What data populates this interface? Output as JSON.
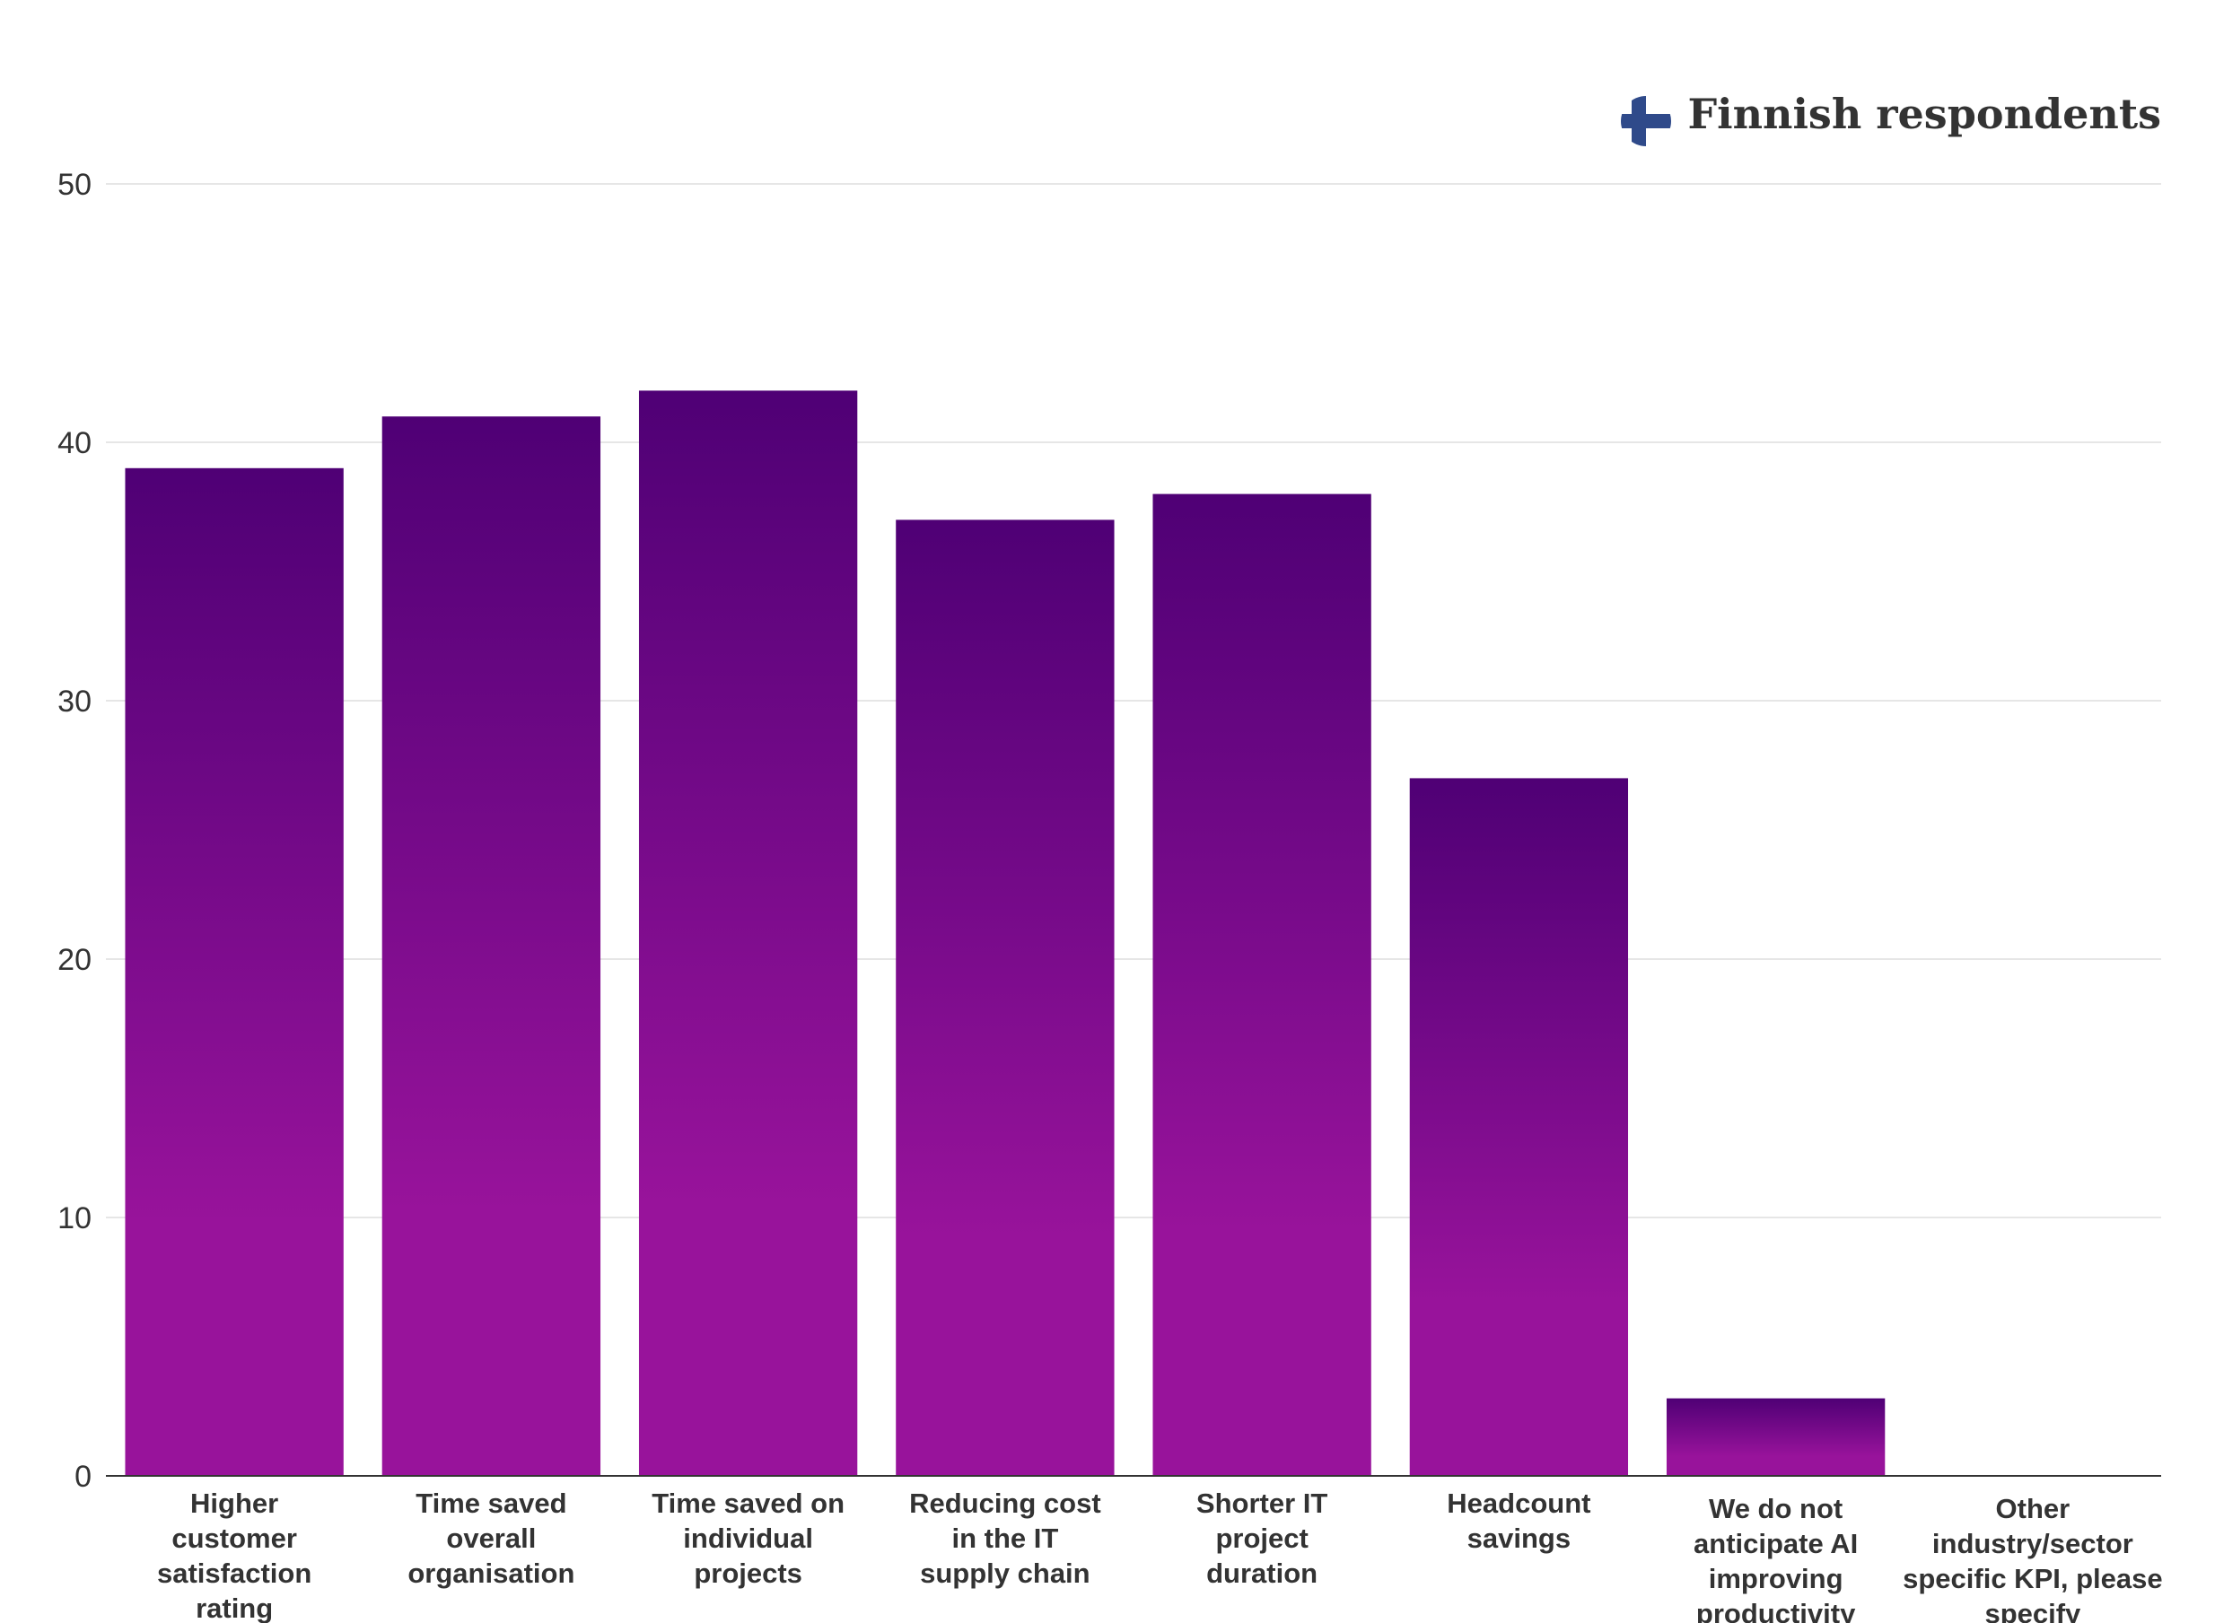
{
  "chart_data": {
    "type": "bar",
    "title": "",
    "xlabel": "",
    "ylabel": "",
    "ylim": [
      0,
      50
    ],
    "yticks": [
      0,
      10,
      20,
      30,
      40,
      50
    ],
    "grid": true,
    "legend": {
      "label": "Finnish respondents",
      "placement": "top-right",
      "icon": "finland-flag-icon"
    },
    "categories": [
      "Higher customer satisfaction rating",
      "Time saved overall organisation",
      "Time saved on individual projects",
      "Reducing cost in the IT supply chain",
      "Shorter IT project duration",
      "Headcount savings",
      "We do not anticipate AI improving productivity",
      "Other industry/sector specific KPI, please specify"
    ],
    "category_lines": [
      [
        "Higher",
        "customer",
        "satisfaction",
        "rating"
      ],
      [
        "Time saved",
        "overall",
        "organisation"
      ],
      [
        "Time saved on",
        "individual",
        "projects"
      ],
      [
        "Reducing cost",
        "in the IT",
        "supply chain"
      ],
      [
        "Shorter IT",
        "project",
        "duration"
      ],
      [
        "Headcount",
        "savings"
      ],
      [
        "We do not",
        "anticipate AI",
        "improving",
        "productivity"
      ],
      [
        "Other",
        "industry/sector",
        "specific KPI, please",
        "specify"
      ]
    ],
    "series": [
      {
        "name": "Finnish respondents",
        "values": [
          39,
          41,
          42,
          37,
          38,
          27,
          3,
          0
        ]
      }
    ]
  },
  "colors": {
    "bar_top": "#4f0075",
    "bar_bottom": "#98139b",
    "grid": "#e6e6e6",
    "axis": "#333333",
    "text": "#333333",
    "flag_blue": "#2f4a8a"
  }
}
